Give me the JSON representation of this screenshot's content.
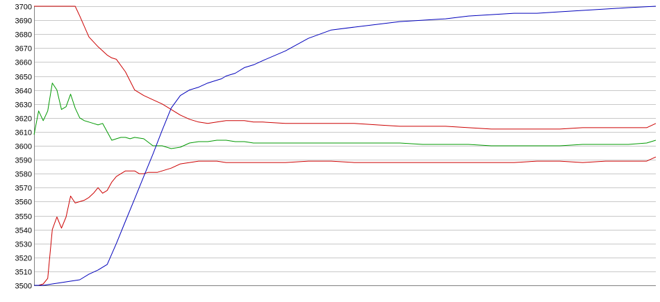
{
  "chart_data": {
    "type": "line",
    "title": "",
    "xlabel": "",
    "ylabel": "",
    "ylim": [
      3500,
      3700
    ],
    "xlim": [
      0,
      136
    ],
    "grid": true,
    "y_ticks": [
      "3500",
      "3510",
      "3520",
      "3530",
      "3540",
      "3550",
      "3560",
      "3570",
      "3580",
      "3590",
      "3600",
      "3610",
      "3620",
      "3630",
      "3640",
      "3650",
      "3660",
      "3670",
      "3680",
      "3690",
      "3700"
    ],
    "series": [
      {
        "color": "#cc0000",
        "x": [
          0,
          4,
          8,
          9,
          10,
          12,
          14,
          15,
          16,
          17,
          18,
          20,
          22,
          24,
          26,
          28,
          30,
          32,
          34,
          36,
          38,
          40,
          42,
          44,
          46,
          48,
          50,
          55,
          60,
          65,
          70,
          75,
          80,
          85,
          90,
          95,
          100,
          105,
          110,
          115,
          120,
          125,
          130,
          134,
          136
        ],
        "y": [
          3700,
          3700,
          3700,
          3700,
          3693,
          3678,
          3671,
          3668,
          3665,
          3663,
          3662,
          3653,
          3640,
          3636,
          3633,
          3630,
          3626,
          3622,
          3619,
          3617,
          3616,
          3617,
          3618,
          3618,
          3618,
          3617,
          3617,
          3616,
          3616,
          3616,
          3616,
          3615,
          3614,
          3614,
          3614,
          3613,
          3612,
          3612,
          3612,
          3612,
          3613,
          3613,
          3613,
          3613,
          3616
        ]
      },
      {
        "color": "#009900",
        "x": [
          0,
          1,
          2,
          3,
          4,
          5,
          6,
          7,
          8,
          9,
          10,
          11,
          12,
          13,
          14,
          15,
          16,
          17,
          18,
          19,
          20,
          21,
          22,
          24,
          26,
          28,
          30,
          32,
          34,
          36,
          38,
          40,
          42,
          44,
          46,
          48,
          50,
          55,
          60,
          65,
          70,
          75,
          80,
          85,
          90,
          95,
          100,
          105,
          110,
          115,
          120,
          125,
          130,
          134,
          136
        ],
        "y": [
          3608,
          3625,
          3618,
          3625,
          3645,
          3640,
          3626,
          3628,
          3637,
          3627,
          3620,
          3618,
          3617,
          3616,
          3615,
          3616,
          3610,
          3604,
          3605,
          3606,
          3606,
          3605,
          3606,
          3605,
          3600,
          3600,
          3598,
          3599,
          3602,
          3603,
          3603,
          3604,
          3604,
          3603,
          3603,
          3602,
          3602,
          3602,
          3602,
          3602,
          3602,
          3602,
          3602,
          3601,
          3601,
          3601,
          3600,
          3600,
          3600,
          3600,
          3601,
          3601,
          3601,
          3602,
          3604
        ]
      },
      {
        "color": "#cc0000",
        "x": [
          0,
          1,
          2,
          3,
          4,
          5,
          6,
          7,
          8,
          9,
          10,
          11,
          12,
          13,
          14,
          15,
          16,
          17,
          18,
          19,
          20,
          21,
          22,
          23,
          24,
          25,
          26,
          27,
          28,
          30,
          32,
          34,
          36,
          38,
          40,
          42,
          44,
          46,
          48,
          50,
          55,
          60,
          65,
          70,
          75,
          80,
          85,
          90,
          95,
          100,
          105,
          110,
          115,
          120,
          125,
          130,
          134,
          136
        ],
        "y": [
          3500,
          3500,
          3501,
          3505,
          3540,
          3549,
          3541,
          3549,
          3564,
          3559,
          3560,
          3561,
          3563,
          3566,
          3570,
          3566,
          3568,
          3574,
          3578,
          3580,
          3582,
          3582,
          3582,
          3580,
          3580,
          3581,
          3581,
          3581,
          3582,
          3584,
          3587,
          3588,
          3589,
          3589,
          3589,
          3588,
          3588,
          3588,
          3588,
          3588,
          3588,
          3589,
          3589,
          3588,
          3588,
          3588,
          3588,
          3588,
          3588,
          3588,
          3588,
          3589,
          3589,
          3588,
          3589,
          3589,
          3589,
          3592
        ]
      },
      {
        "color": "#0000bb",
        "x": [
          0,
          2,
          4,
          6,
          8,
          10,
          12,
          14,
          16,
          18,
          20,
          22,
          24,
          26,
          28,
          30,
          32,
          34,
          36,
          38,
          40,
          41,
          42,
          44,
          46,
          48,
          50,
          55,
          60,
          65,
          70,
          75,
          80,
          85,
          90,
          95,
          100,
          105,
          110,
          115,
          120,
          125,
          130,
          136
        ],
        "y": [
          3500,
          3500,
          3501,
          3502,
          3503,
          3504,
          3508,
          3511,
          3515,
          3530,
          3546,
          3562,
          3578,
          3594,
          3611,
          3627,
          3636,
          3640,
          3642,
          3645,
          3647,
          3648,
          3650,
          3652,
          3656,
          3658,
          3661,
          3668,
          3677,
          3683,
          3685,
          3687,
          3689,
          3690,
          3691,
          3693,
          3694,
          3695,
          3695,
          3696,
          3697,
          3698,
          3699,
          3700
        ]
      }
    ]
  }
}
